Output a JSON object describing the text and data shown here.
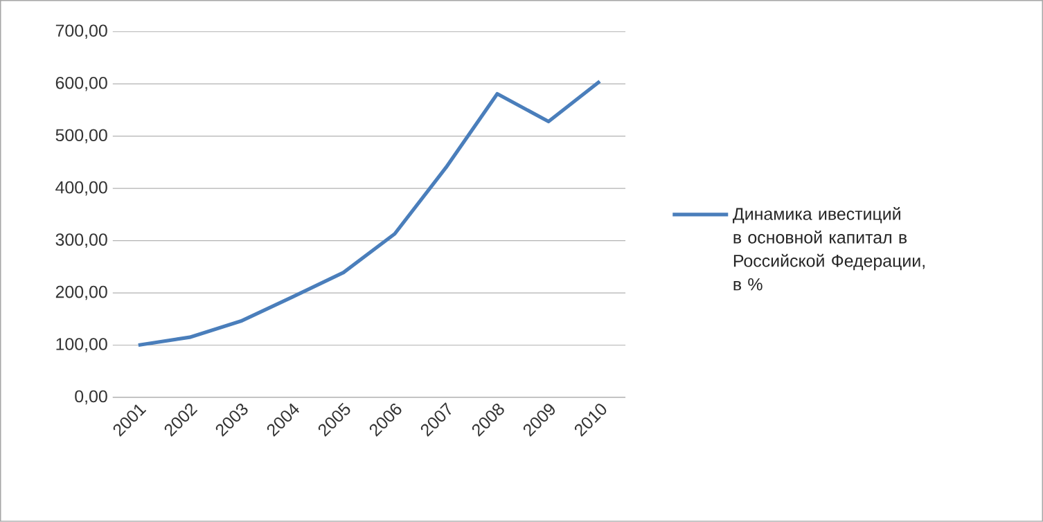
{
  "chart_data": {
    "type": "line",
    "categories": [
      "2001",
      "2002",
      "2003",
      "2004",
      "2005",
      "2006",
      "2007",
      "2008",
      "2009",
      "2010"
    ],
    "series": [
      {
        "name": "Динамика ивестиций в основной капитал в Российской Федерации, в %",
        "color": "#4a7ebb",
        "values": [
          100,
          115,
          146,
          192,
          239,
          313,
          440,
          581,
          528,
          605
        ]
      }
    ],
    "ylim": [
      0,
      700
    ],
    "yticks": [
      {
        "value": 0,
        "label": "0,00"
      },
      {
        "value": 100,
        "label": "100,00"
      },
      {
        "value": 200,
        "label": "200,00"
      },
      {
        "value": 300,
        "label": "300,00"
      },
      {
        "value": 400,
        "label": "400,00"
      },
      {
        "value": 500,
        "label": "500,00"
      },
      {
        "value": 600,
        "label": "600,00"
      },
      {
        "value": 700,
        "label": "700,00"
      }
    ],
    "grid": "y",
    "legend": "right",
    "marker": "none",
    "line_style": "solid"
  }
}
